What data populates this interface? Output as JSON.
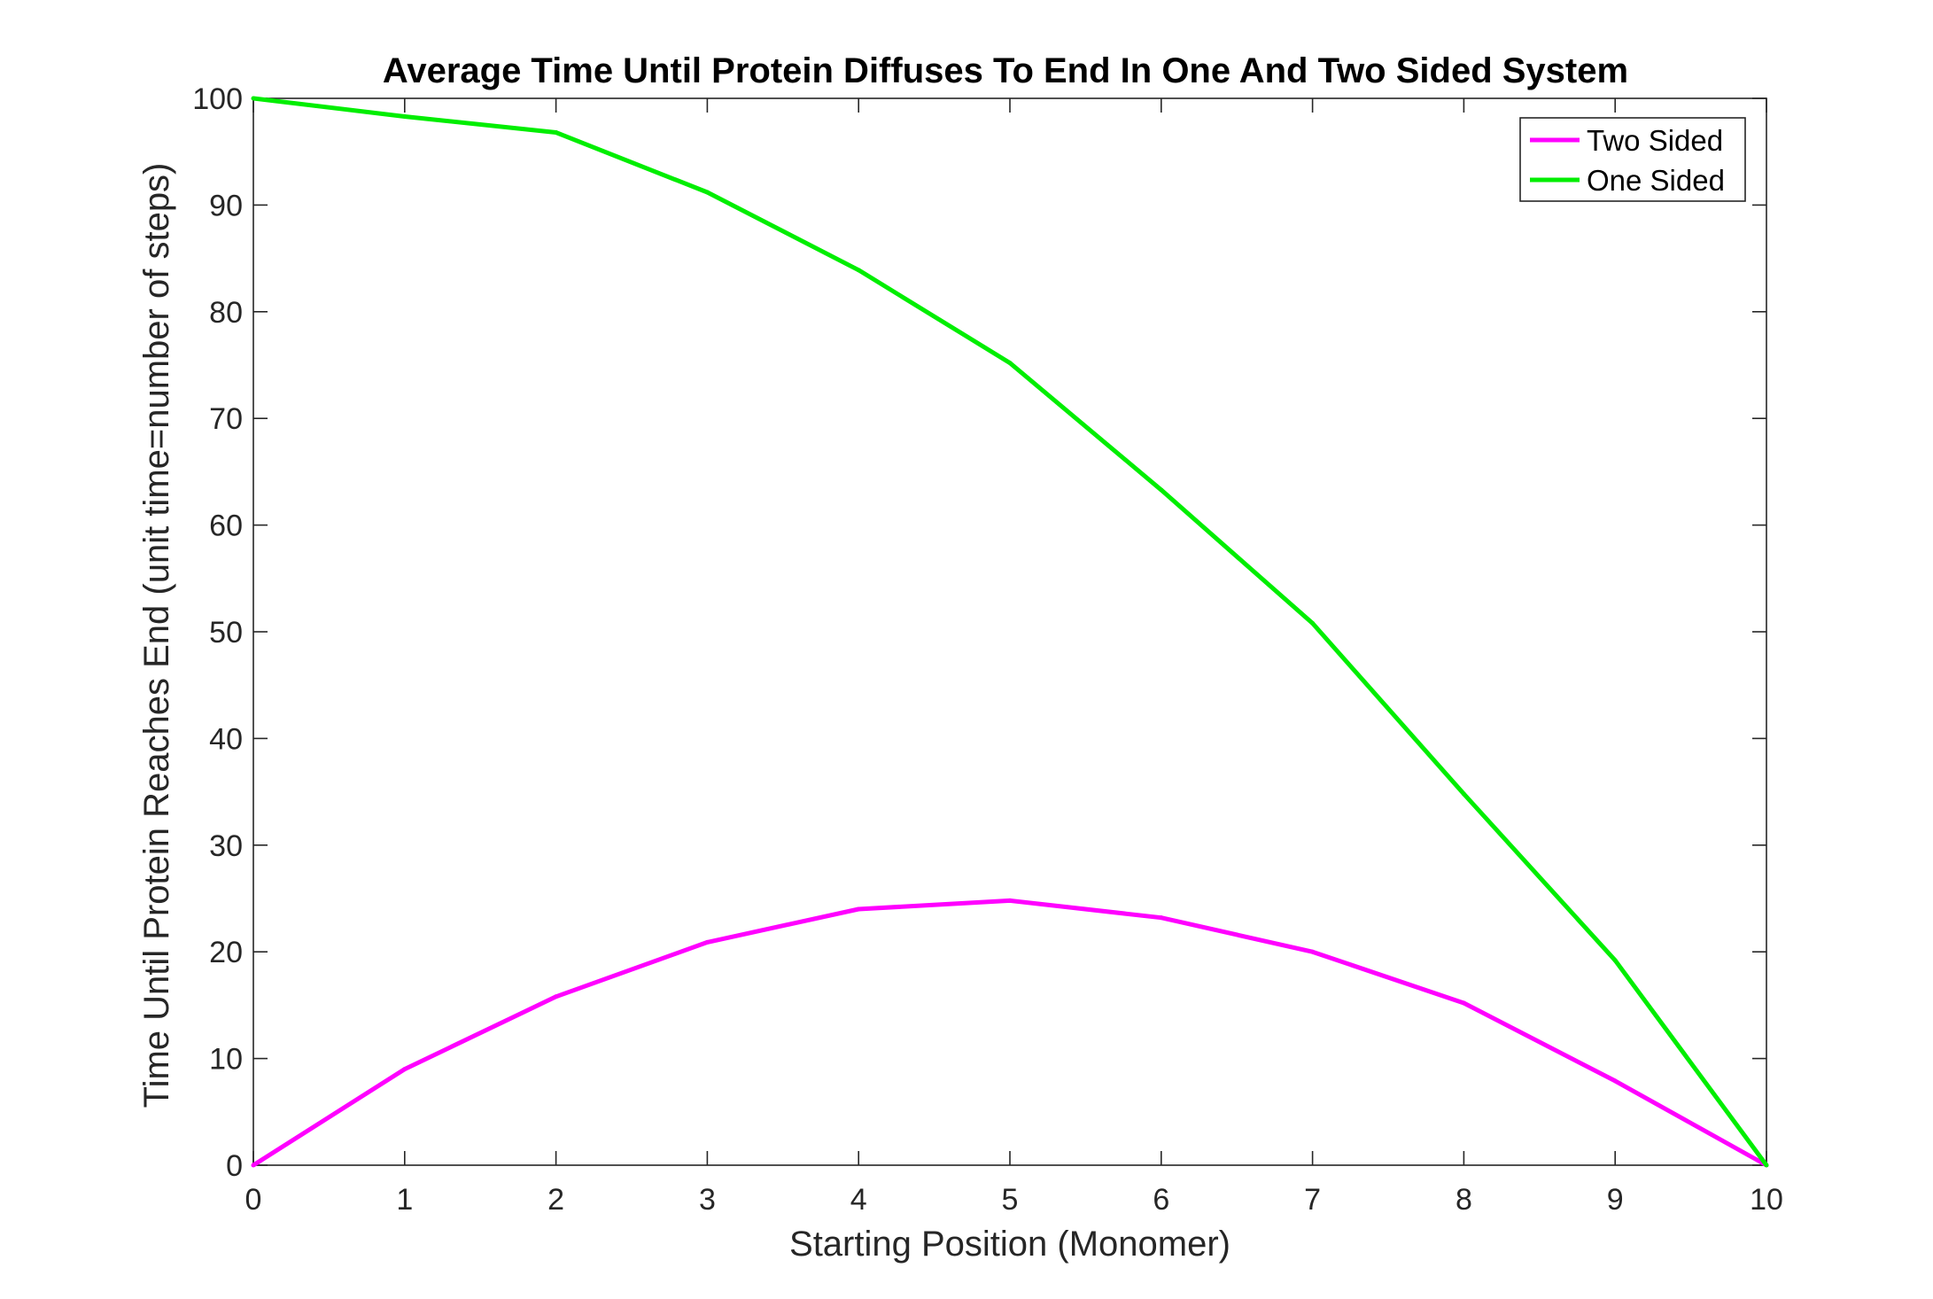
{
  "chart_data": {
    "type": "line",
    "title": "Average Time Until Protein Diffuses To End In One And Two Sided System",
    "xlabel": "Starting Position (Monomer)",
    "ylabel": "Time Until Protein Reaches End (unit time=number of steps)",
    "xlim": [
      0,
      10
    ],
    "ylim": [
      0,
      100
    ],
    "xticks": [
      "0",
      "1",
      "2",
      "3",
      "4",
      "5",
      "6",
      "7",
      "8",
      "9",
      "10"
    ],
    "yticks": [
      "0",
      "10",
      "20",
      "30",
      "40",
      "50",
      "60",
      "70",
      "80",
      "90",
      "100"
    ],
    "x": [
      0,
      1,
      2,
      3,
      4,
      5,
      6,
      7,
      8,
      9,
      10
    ],
    "grid": false,
    "legend_position": "top-right",
    "series": [
      {
        "name": "Two Sided",
        "color": "#ff00ff",
        "values": [
          0,
          9,
          15.8,
          20.9,
          24,
          24.8,
          23.2,
          20,
          15.2,
          7.9,
          0
        ]
      },
      {
        "name": "One Sided",
        "color": "#00ee00",
        "values": [
          100,
          98.3,
          96.8,
          91.2,
          83.9,
          75.2,
          63.3,
          50.8,
          34.8,
          19.2,
          0
        ]
      }
    ]
  }
}
